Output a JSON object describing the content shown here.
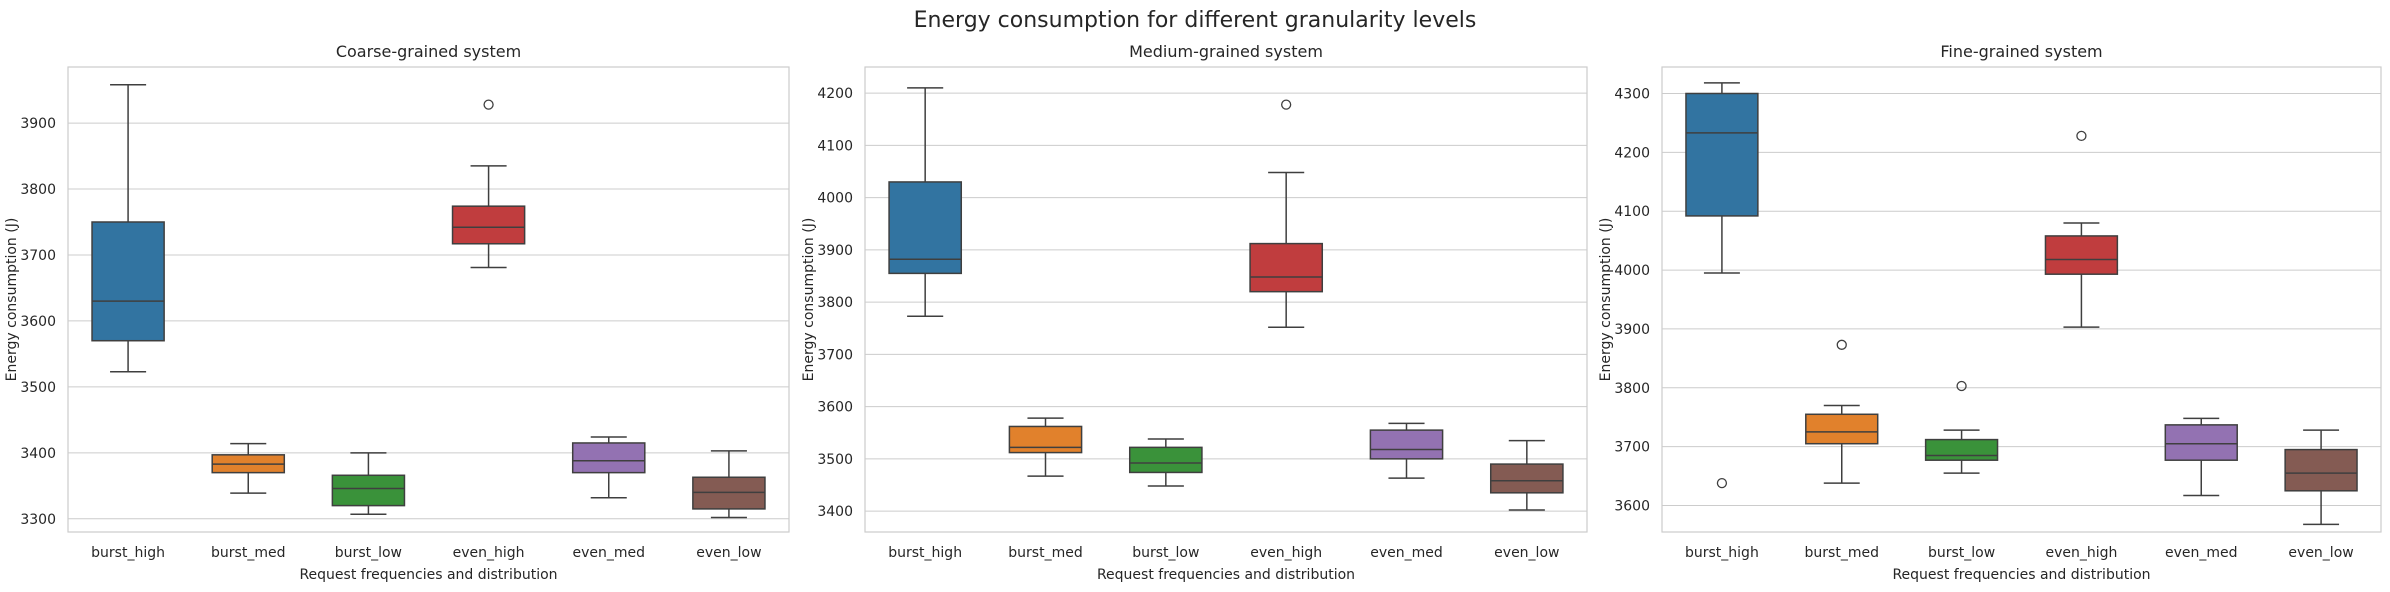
{
  "figure": {
    "title": "Energy consumption for different granularity levels"
  },
  "chart_data": [
    {
      "type": "box",
      "title": "Coarse-grained system",
      "xlabel": "Request frequencies and distribution",
      "ylabel": "Energy consumption (J)",
      "ylim": [
        3280,
        3985
      ],
      "yticks": [
        3300,
        3400,
        3500,
        3600,
        3700,
        3800,
        3900
      ],
      "grid": true,
      "categories": [
        "burst_high",
        "burst_med",
        "burst_low",
        "even_high",
        "even_med",
        "even_low"
      ],
      "colors": [
        "#3274a1",
        "#e1812c",
        "#3a923a",
        "#c03d3e",
        "#9372b2",
        "#845b53"
      ],
      "boxes": [
        {
          "whislo": 3523,
          "q1": 3570,
          "med": 3630,
          "q3": 3750,
          "whishi": 3958,
          "fliers": []
        },
        {
          "whislo": 3339,
          "q1": 3370,
          "med": 3383,
          "q3": 3397,
          "whishi": 3414,
          "fliers": []
        },
        {
          "whislo": 3307,
          "q1": 3320,
          "med": 3346,
          "q3": 3366,
          "whishi": 3400,
          "fliers": []
        },
        {
          "whislo": 3681,
          "q1": 3717,
          "med": 3742,
          "q3": 3774,
          "whishi": 3835,
          "fliers": [
            3928
          ]
        },
        {
          "whislo": 3332,
          "q1": 3370,
          "med": 3388,
          "q3": 3415,
          "whishi": 3424,
          "fliers": []
        },
        {
          "whislo": 3302,
          "q1": 3315,
          "med": 3340,
          "q3": 3363,
          "whishi": 3403,
          "fliers": []
        }
      ]
    },
    {
      "type": "box",
      "title": "Medium-grained system",
      "xlabel": "Request frequencies and distribution",
      "ylabel": "Energy consumption (J)",
      "ylim": [
        3360,
        4250
      ],
      "yticks": [
        3400,
        3500,
        3600,
        3700,
        3800,
        3900,
        4000,
        4100,
        4200
      ],
      "grid": true,
      "categories": [
        "burst_high",
        "burst_med",
        "burst_low",
        "even_high",
        "even_med",
        "even_low"
      ],
      "colors": [
        "#3274a1",
        "#e1812c",
        "#3a923a",
        "#c03d3e",
        "#9372b2",
        "#845b53"
      ],
      "boxes": [
        {
          "whislo": 3773,
          "q1": 3855,
          "med": 3882,
          "q3": 4030,
          "whishi": 4210,
          "fliers": []
        },
        {
          "whislo": 3467,
          "q1": 3512,
          "med": 3522,
          "q3": 3562,
          "whishi": 3578,
          "fliers": []
        },
        {
          "whislo": 3448,
          "q1": 3474,
          "med": 3492,
          "q3": 3522,
          "whishi": 3538,
          "fliers": []
        },
        {
          "whislo": 3752,
          "q1": 3820,
          "med": 3848,
          "q3": 3912,
          "whishi": 4048,
          "fliers": [
            4178
          ]
        },
        {
          "whislo": 3463,
          "q1": 3500,
          "med": 3518,
          "q3": 3555,
          "whishi": 3568,
          "fliers": []
        },
        {
          "whislo": 3402,
          "q1": 3435,
          "med": 3458,
          "q3": 3490,
          "whishi": 3535,
          "fliers": []
        }
      ]
    },
    {
      "type": "box",
      "title": "Fine-grained system",
      "xlabel": "Request frequencies and distribution",
      "ylabel": "Energy consumption (J)",
      "ylim": [
        3555,
        4345
      ],
      "yticks": [
        3600,
        3700,
        3800,
        3900,
        4000,
        4100,
        4200,
        4300
      ],
      "grid": true,
      "categories": [
        "burst_high",
        "burst_med",
        "burst_low",
        "even_high",
        "even_med",
        "even_low"
      ],
      "colors": [
        "#3274a1",
        "#e1812c",
        "#3a923a",
        "#c03d3e",
        "#9372b2",
        "#845b53"
      ],
      "boxes": [
        {
          "whislo": 3995,
          "q1": 4092,
          "med": 4233,
          "q3": 4300,
          "whishi": 4318,
          "fliers": [
            3638
          ]
        },
        {
          "whislo": 3638,
          "q1": 3705,
          "med": 3725,
          "q3": 3755,
          "whishi": 3770,
          "fliers": [
            3873
          ]
        },
        {
          "whislo": 3655,
          "q1": 3677,
          "med": 3685,
          "q3": 3712,
          "whishi": 3728,
          "fliers": [
            3803
          ]
        },
        {
          "whislo": 3903,
          "q1": 3993,
          "med": 4018,
          "q3": 4058,
          "whishi": 4080,
          "fliers": [
            4228
          ]
        },
        {
          "whislo": 3617,
          "q1": 3677,
          "med": 3705,
          "q3": 3737,
          "whishi": 3748,
          "fliers": []
        },
        {
          "whislo": 3568,
          "q1": 3625,
          "med": 3655,
          "q3": 3695,
          "whishi": 3728,
          "fliers": []
        }
      ]
    }
  ]
}
